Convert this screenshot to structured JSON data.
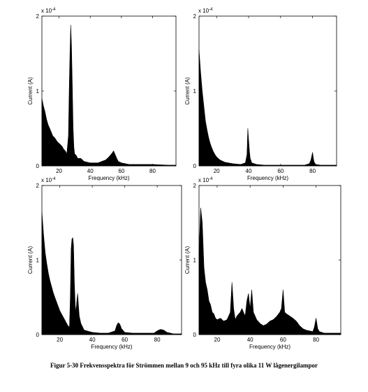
{
  "caption": "Figur 5-30  Frekvensspektra för Strömmen mellan 9 och 95 kHz till fyra olika 11 W lågenergilampor",
  "chart_data": [
    {
      "type": "line",
      "title": "",
      "xlabel": "Frequency (kHz)",
      "ylabel": "Current (A)",
      "y_multiplier": "x 10",
      "y_exponent": "-4",
      "xlim": [
        9,
        95
      ],
      "ylim": [
        0,
        2
      ],
      "x_ticks": [
        20,
        40,
        60,
        80
      ],
      "y_ticks": [
        0,
        1,
        2
      ],
      "x_tick_labels": [
        "20",
        "40",
        "60",
        "80"
      ],
      "y_tick_labels": [
        "0",
        "1",
        "2"
      ],
      "grid": false,
      "series": [
        {
          "x": [
            9,
            10,
            11,
            12,
            13,
            14,
            15,
            16,
            17,
            18,
            19,
            20,
            21,
            22,
            23,
            24,
            25,
            26,
            26.5,
            27,
            27.5,
            28,
            28.5,
            29,
            29.5,
            30,
            31,
            32,
            34,
            36,
            38,
            40,
            45,
            50,
            52,
            54,
            55,
            56,
            57,
            58,
            60,
            65,
            70,
            80,
            90,
            95
          ],
          "y": [
            0.9,
            0.8,
            0.72,
            0.62,
            0.55,
            0.5,
            0.45,
            0.4,
            0.38,
            0.35,
            0.32,
            0.3,
            0.28,
            0.26,
            0.22,
            0.2,
            0.16,
            0.4,
            1.0,
            1.5,
            1.88,
            1.6,
            1.1,
            0.5,
            0.25,
            0.16,
            0.14,
            0.1,
            0.1,
            0.06,
            0.05,
            0.04,
            0.04,
            0.08,
            0.12,
            0.17,
            0.2,
            0.15,
            0.1,
            0.06,
            0.04,
            0.02,
            0.02,
            0.02,
            0.01,
            0.01
          ]
        }
      ]
    },
    {
      "type": "line",
      "title": "",
      "xlabel": "Frequency (kHz)",
      "ylabel": "Current (A)",
      "y_multiplier": "x 10",
      "y_exponent": "-4",
      "xlim": [
        9,
        95
      ],
      "ylim": [
        0,
        2
      ],
      "x_ticks": [
        20,
        40,
        60,
        80
      ],
      "y_ticks": [
        0,
        1,
        2
      ],
      "x_tick_labels": [
        "20",
        "40",
        "60",
        "80"
      ],
      "y_tick_labels": [
        "0",
        "1",
        "2"
      ],
      "grid": false,
      "series": [
        {
          "x": [
            9,
            10,
            11,
            12,
            13,
            14,
            15,
            16,
            17,
            18,
            19,
            20,
            22,
            25,
            30,
            35,
            38,
            39,
            39.5,
            40,
            40.5,
            41,
            42,
            45,
            50,
            60,
            70,
            75,
            78,
            79,
            80,
            80.5,
            81,
            82,
            85,
            90,
            95
          ],
          "y": [
            1.55,
            1.25,
            1.0,
            0.8,
            0.6,
            0.48,
            0.38,
            0.3,
            0.24,
            0.19,
            0.15,
            0.12,
            0.08,
            0.05,
            0.03,
            0.02,
            0.04,
            0.15,
            0.5,
            0.35,
            0.2,
            0.1,
            0.04,
            0.02,
            0.01,
            0.01,
            0.01,
            0.01,
            0.03,
            0.08,
            0.18,
            0.1,
            0.05,
            0.02,
            0.01,
            0.01,
            0.01
          ]
        }
      ]
    },
    {
      "type": "line",
      "title": "",
      "xlabel": "Frequency (kHz)",
      "ylabel": "Current (A)",
      "y_multiplier": "x 10",
      "y_exponent": "-4",
      "xlim": [
        9,
        95
      ],
      "ylim": [
        0,
        2
      ],
      "x_ticks": [
        20,
        40,
        60,
        80
      ],
      "y_ticks": [
        0,
        1,
        2
      ],
      "x_tick_labels": [
        "20",
        "40",
        "60",
        "80"
      ],
      "y_tick_labels": [
        "0",
        "1",
        "2"
      ],
      "grid": false,
      "series": [
        {
          "x": [
            9,
            10,
            11,
            12,
            13,
            14,
            15,
            16,
            17,
            18,
            19,
            20,
            21,
            22,
            23,
            24,
            25,
            26,
            26.5,
            27,
            27.5,
            28,
            28.5,
            29,
            29.5,
            30,
            30.5,
            31,
            31.5,
            32,
            33,
            35,
            40,
            45,
            50,
            54,
            55,
            56,
            57,
            58,
            60,
            65,
            70,
            78,
            80,
            82,
            84,
            86,
            90,
            95
          ],
          "y": [
            1.65,
            1.35,
            1.1,
            0.95,
            0.82,
            0.72,
            0.64,
            0.56,
            0.5,
            0.44,
            0.38,
            0.32,
            0.28,
            0.24,
            0.2,
            0.16,
            0.12,
            0.1,
            0.5,
            1.15,
            1.28,
            1.3,
            1.2,
            0.7,
            0.4,
            0.3,
            0.45,
            0.55,
            0.4,
            0.25,
            0.15,
            0.06,
            0.03,
            0.02,
            0.02,
            0.05,
            0.12,
            0.16,
            0.14,
            0.08,
            0.03,
            0.02,
            0.02,
            0.02,
            0.05,
            0.07,
            0.06,
            0.03,
            0.01,
            0.01
          ]
        }
      ]
    },
    {
      "type": "line",
      "title": "",
      "xlabel": "Frequency (kHz)",
      "ylabel": "Current (A)",
      "y_multiplier": "x 10",
      "y_exponent": "-4",
      "xlim": [
        9,
        95
      ],
      "ylim": [
        0,
        2
      ],
      "x_ticks": [
        20,
        40,
        60,
        80
      ],
      "y_ticks": [
        0,
        1,
        2
      ],
      "x_tick_labels": [
        "20",
        "40",
        "60",
        "80"
      ],
      "y_tick_labels": [
        "0",
        "1",
        "2"
      ],
      "grid": false,
      "series": [
        {
          "x": [
            9,
            10,
            11,
            12,
            13,
            14,
            15,
            16,
            17,
            18,
            19,
            20,
            22,
            24,
            26,
            28,
            29,
            30,
            31,
            32,
            34,
            35,
            36,
            37,
            38,
            39,
            40,
            41,
            42,
            43,
            44,
            46,
            48,
            50,
            52,
            54,
            56,
            58,
            59,
            60,
            61,
            62,
            64,
            66,
            68,
            70,
            72,
            74,
            76,
            78,
            79,
            80,
            81,
            82,
            85,
            90,
            95
          ],
          "y": [
            1.1,
            1.7,
            1.5,
            0.9,
            0.7,
            0.6,
            0.45,
            0.4,
            0.3,
            0.28,
            0.22,
            0.2,
            0.22,
            0.18,
            0.2,
            0.3,
            0.7,
            0.35,
            0.2,
            0.25,
            0.3,
            0.35,
            0.3,
            0.25,
            0.45,
            0.55,
            0.35,
            0.6,
            0.3,
            0.25,
            0.2,
            0.15,
            0.12,
            0.14,
            0.18,
            0.2,
            0.24,
            0.3,
            0.35,
            0.6,
            0.3,
            0.28,
            0.25,
            0.22,
            0.18,
            0.12,
            0.08,
            0.06,
            0.05,
            0.04,
            0.1,
            0.22,
            0.08,
            0.04,
            0.02,
            0.02,
            0.02
          ]
        }
      ]
    }
  ]
}
